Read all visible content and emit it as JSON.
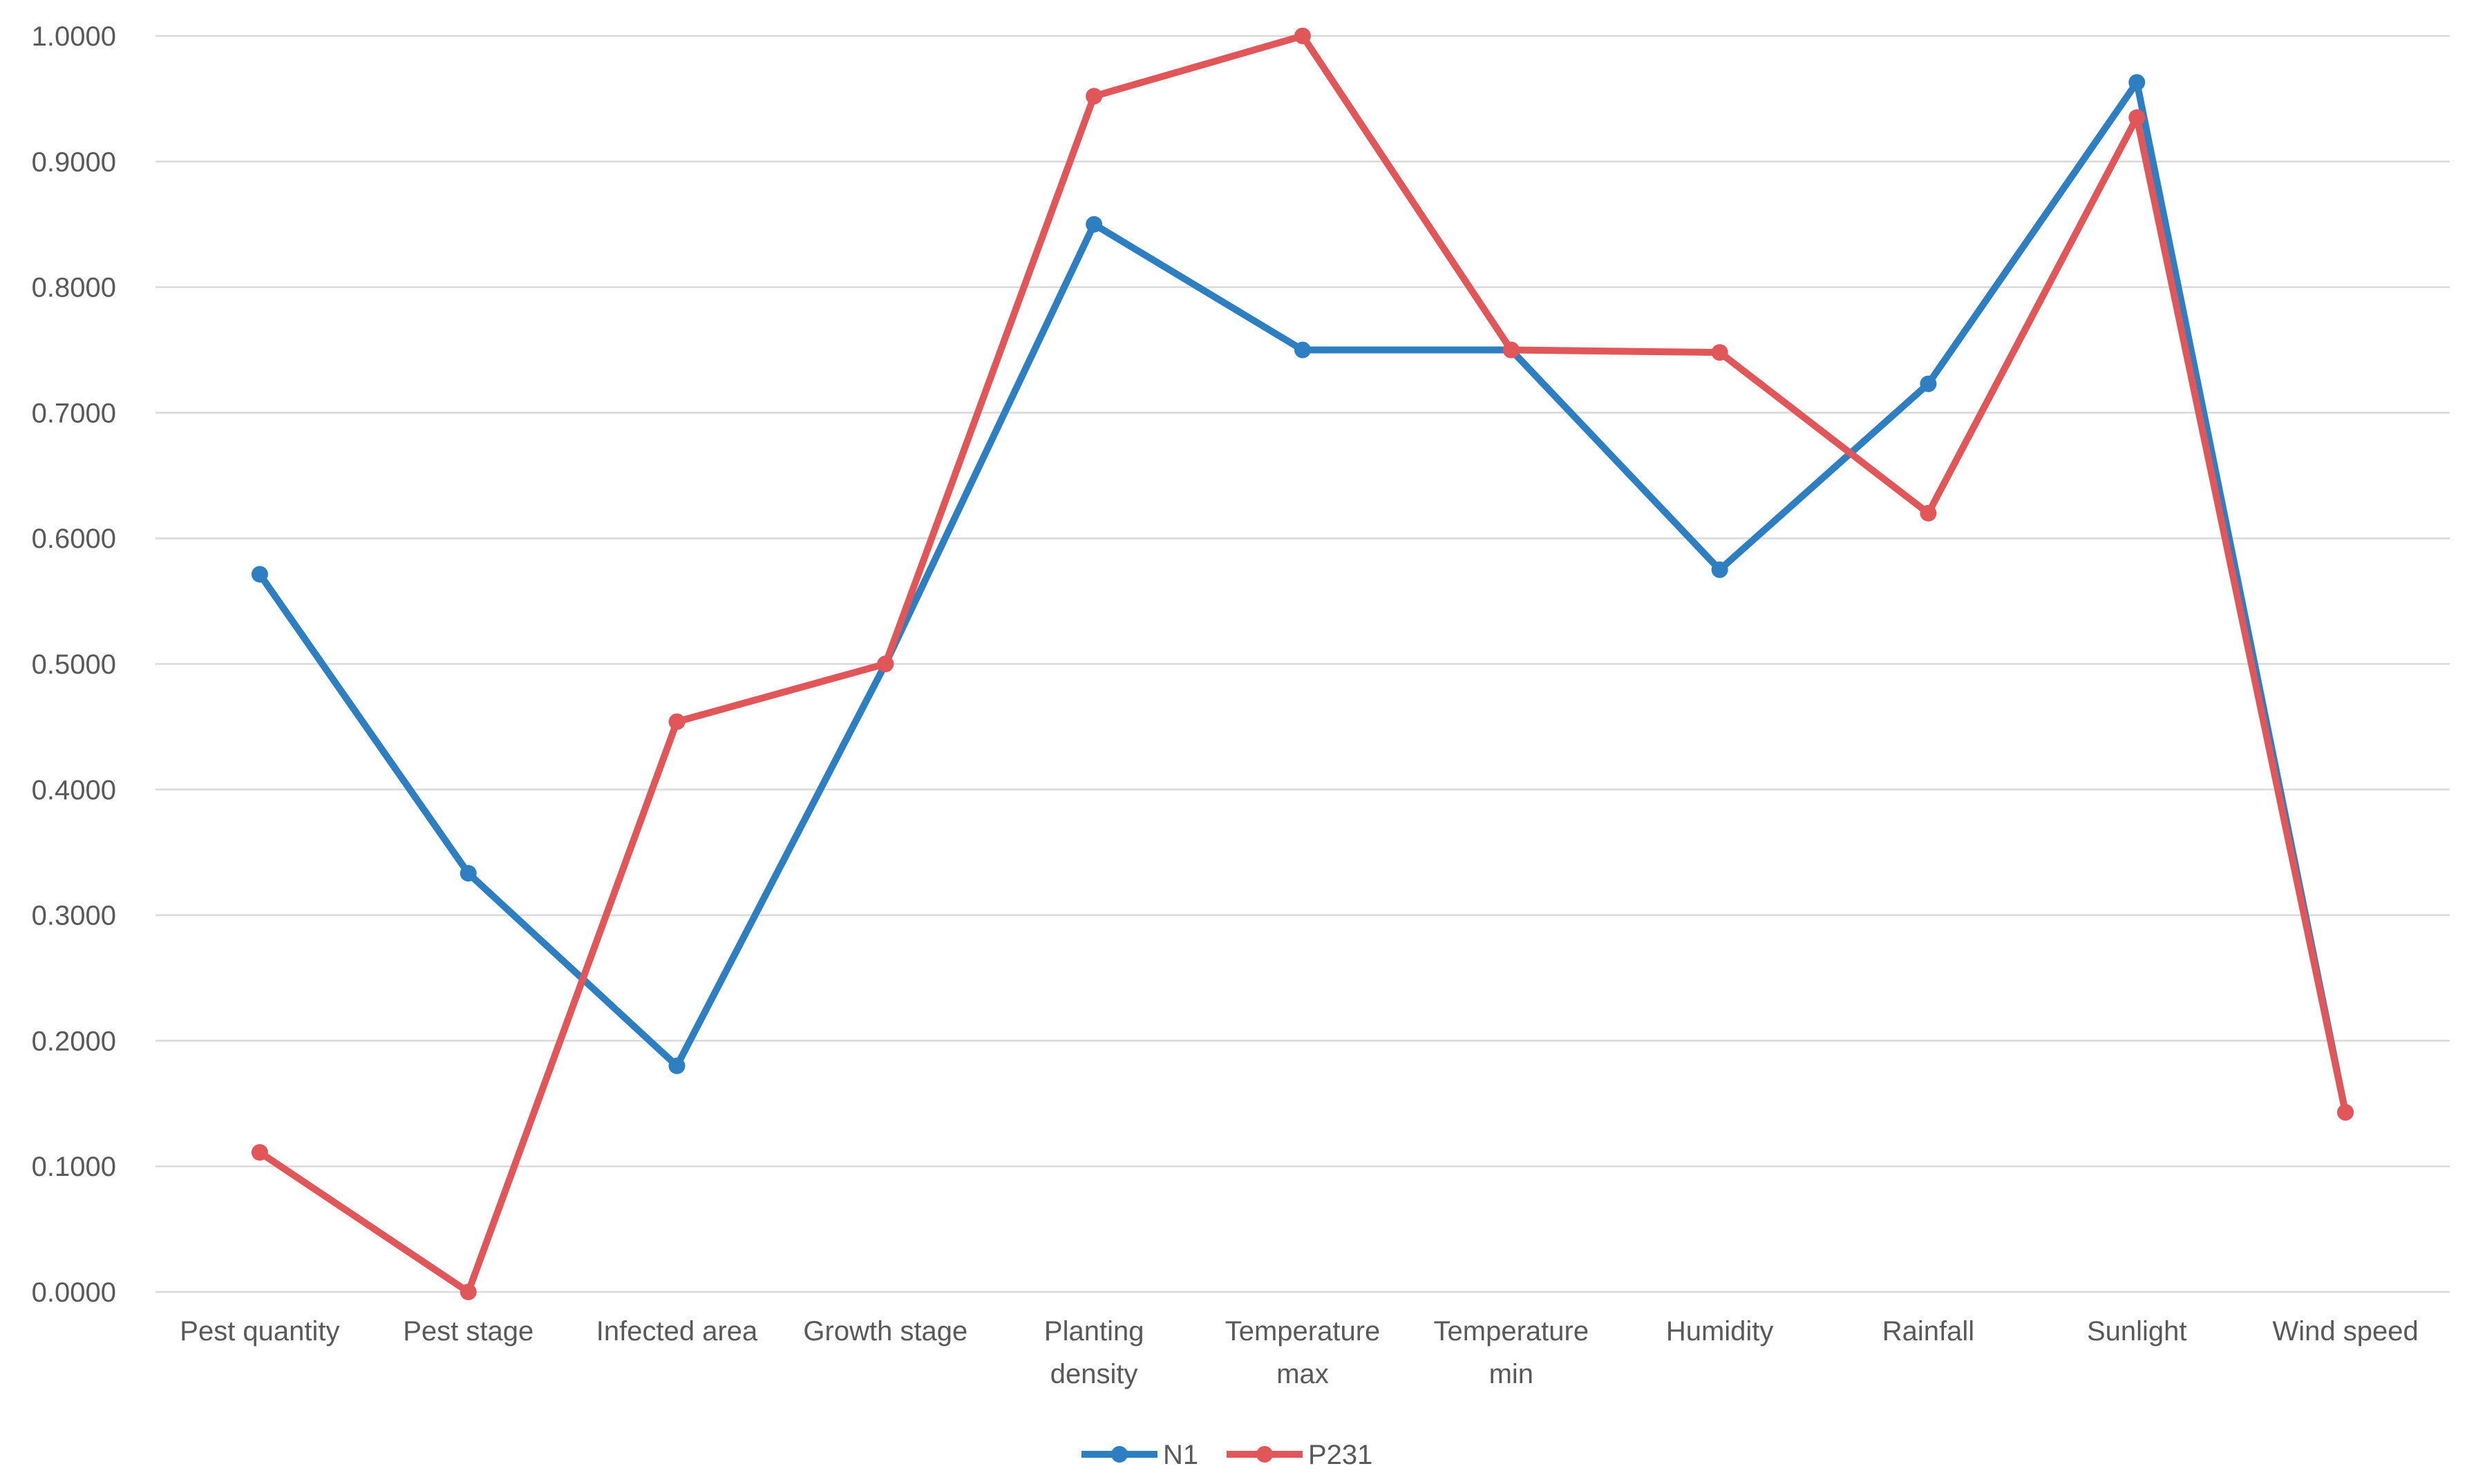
{
  "chart_data": {
    "type": "line",
    "title": "",
    "xlabel": "",
    "ylabel": "",
    "categories": [
      [
        "Pest quantity"
      ],
      [
        "Pest stage"
      ],
      [
        "Infected area"
      ],
      [
        "Growth stage"
      ],
      [
        "Planting",
        "density"
      ],
      [
        "Temperature",
        "max"
      ],
      [
        "Temperature",
        "min"
      ],
      [
        "Humidity"
      ],
      [
        "Rainfall"
      ],
      [
        "Sunlight"
      ],
      [
        "Wind speed"
      ]
    ],
    "ylim": [
      0,
      1
    ],
    "y_ticks": [
      "0.0000",
      "0.1000",
      "0.2000",
      "0.3000",
      "0.4000",
      "0.5000",
      "0.6000",
      "0.7000",
      "0.8000",
      "0.9000",
      "1.0000"
    ],
    "grid": true,
    "legend_position": "bottom",
    "series": [
      {
        "name": "N1",
        "color": "#2e7fc1",
        "values": [
          0.5714,
          0.3333,
          0.18,
          0.5,
          0.85,
          0.75,
          0.75,
          0.575,
          0.723,
          0.963,
          0.143
        ]
      },
      {
        "name": "P231",
        "color": "#e15759",
        "values": [
          0.1111,
          0.0,
          0.454,
          0.5,
          0.952,
          1.0,
          0.75,
          0.748,
          0.62,
          0.935,
          0.143
        ]
      }
    ]
  }
}
